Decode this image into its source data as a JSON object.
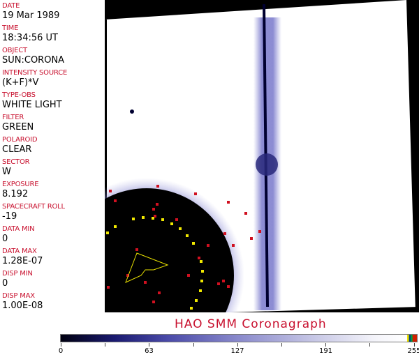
{
  "fields": [
    {
      "label": "DATE",
      "value": "19 Mar 1989"
    },
    {
      "label": "TIME",
      "value": "18:34:56 UT"
    },
    {
      "label": "OBJECT",
      "value": "SUN:CORONA"
    },
    {
      "label": "INTENSITY SOURCE",
      "value": "(K+F)*V"
    },
    {
      "label": "TYPE-OBS",
      "value": "WHITE LIGHT"
    },
    {
      "label": "FILTER",
      "value": "GREEN"
    },
    {
      "label": "POLAROID",
      "value": "CLEAR"
    },
    {
      "label": "SECTOR",
      "value": "W"
    },
    {
      "label": "EXPOSURE",
      "value": "8.192"
    },
    {
      "label": "SPACECRAFT ROLL",
      "value": "-19"
    },
    {
      "label": "DATA MIN",
      "value": "0"
    },
    {
      "label": "DATA MAX",
      "value": "1.28E-07"
    },
    {
      "label": "DISP MIN",
      "value": "0"
    },
    {
      "label": "DISP MAX",
      "value": "1.00E-08"
    }
  ],
  "title": "HAO  SMM Coronagraph",
  "colorbar": {
    "ticks": [
      "0",
      "63",
      "127",
      "191",
      "255"
    ],
    "colors": {
      "low": "#000010",
      "mid": "#4a4aa8",
      "high": "#ffffff"
    }
  }
}
